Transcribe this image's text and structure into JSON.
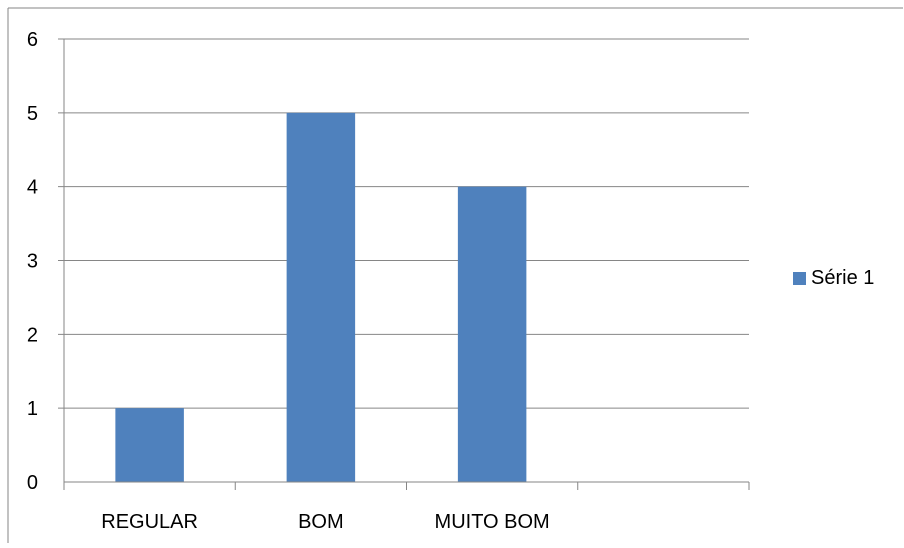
{
  "colors": {
    "series": "#4F81BD",
    "grid": "#868686",
    "frame": "#868686",
    "text": "#000000"
  },
  "chart_data": {
    "type": "bar",
    "title": "",
    "xlabel": "",
    "ylabel": "",
    "categories": [
      "REGULAR",
      "BOM",
      "MUITO BOM",
      ""
    ],
    "series": [
      {
        "name": "Série 1",
        "values": [
          1,
          5,
          4,
          null
        ]
      }
    ],
    "ylim": [
      0,
      6
    ],
    "yticks": [
      "0",
      "1",
      "2",
      "3",
      "4",
      "5",
      "6"
    ],
    "grid": true,
    "legend_position": "right"
  }
}
